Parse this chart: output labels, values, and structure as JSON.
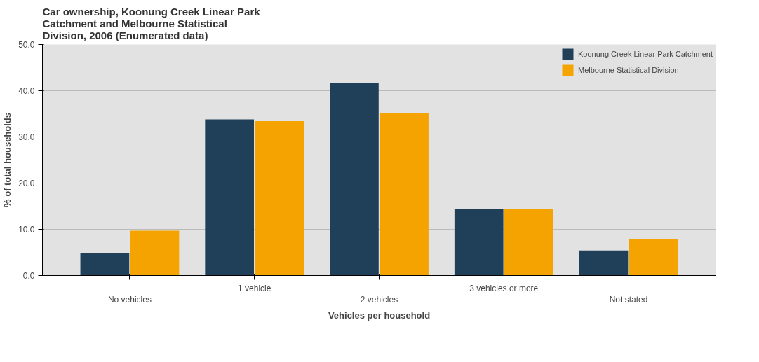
{
  "chart_data": {
    "type": "bar",
    "title": "Car ownership, Koonung Creek Linear Park Catchment and Melbourne Statistical Division, 2006 (Enumerated data)",
    "xlabel": "Vehicles per household",
    "ylabel": "% of total households",
    "categories": [
      "No vehicles",
      "1 vehicle",
      "2 vehicles",
      "3 vehicles or more",
      "Not stated"
    ],
    "series": [
      {
        "name": "Koonung Creek Linear Park Catchment",
        "color": "#1f4058",
        "values": [
          4.9,
          33.8,
          41.7,
          14.4,
          5.4
        ]
      },
      {
        "name": "Melbourne Statistical Division",
        "color": "#f5a300",
        "values": [
          9.7,
          33.4,
          35.2,
          14.3,
          7.8
        ]
      }
    ],
    "ylim": [
      0,
      50
    ],
    "yticks": [
      {
        "value": 0,
        "label": "0.0"
      },
      {
        "value": 10,
        "label": "10.0"
      },
      {
        "value": 20,
        "label": "20.0"
      },
      {
        "value": 30,
        "label": "30.0"
      },
      {
        "value": 40,
        "label": "40.0"
      },
      {
        "value": 50,
        "label": "50.0"
      }
    ],
    "grid": "y",
    "legend": "top right"
  }
}
